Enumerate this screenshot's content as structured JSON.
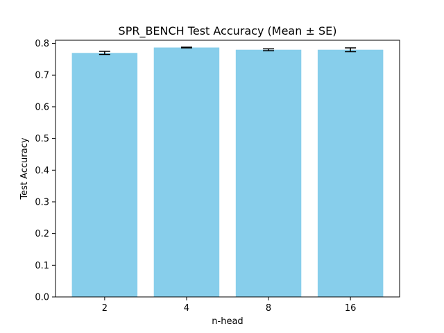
{
  "chart_data": {
    "type": "bar",
    "title": "SPR_BENCH Test Accuracy (Mean ± SE)",
    "xlabel": "n-head",
    "ylabel": "Test Accuracy",
    "categories": [
      "2",
      "4",
      "8",
      "16"
    ],
    "values": [
      0.77,
      0.787,
      0.78,
      0.78
    ],
    "errors": [
      0.005,
      0.001,
      0.003,
      0.006
    ],
    "ylim": [
      0,
      0.81
    ],
    "yticks": [
      "0.0",
      "0.1",
      "0.2",
      "0.3",
      "0.4",
      "0.5",
      "0.6",
      "0.7",
      "0.8"
    ],
    "grid": false,
    "legend": "none",
    "bar_color": "#87ceeb",
    "error_bar_color": "#000000"
  }
}
